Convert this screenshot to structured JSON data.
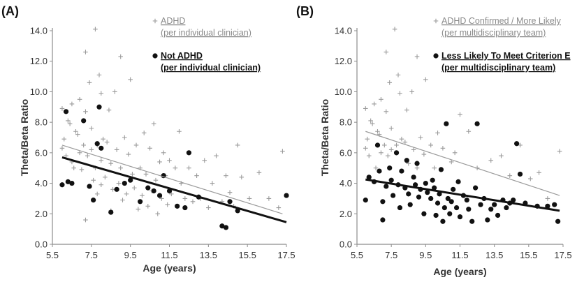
{
  "colors": {
    "gray": "#9a9a9a",
    "black": "#111111",
    "axis": "#8c8c8c"
  },
  "chart_data": [
    {
      "type": "scatter",
      "panel_label": "(A)",
      "xlabel": "Age  (years)",
      "ylabel": "Theta/Beta Ratio",
      "xlim": [
        5.5,
        17.5
      ],
      "ylim": [
        0.0,
        14.0
      ],
      "xticks": [
        "5.5",
        "7.5",
        "9.5",
        "11.5",
        "13.5",
        "15.5",
        "17.5"
      ],
      "yticks": [
        "0.0",
        "2.0",
        "4.0",
        "6.0",
        "8.0",
        "10.0",
        "12.0",
        "14.0"
      ],
      "legend_position": "top-right",
      "series": [
        {
          "name": "ADHD",
          "name_line2": "(per individual clinician)",
          "marker": "plus",
          "points": [
            [
              6.0,
              6.3
            ],
            [
              6.0,
              8.9
            ],
            [
              6.1,
              6.9
            ],
            [
              6.2,
              5.8
            ],
            [
              6.3,
              8.1
            ],
            [
              6.4,
              7.9
            ],
            [
              6.5,
              9.2
            ],
            [
              6.5,
              5.4
            ],
            [
              6.6,
              5.0
            ],
            [
              6.7,
              7.4
            ],
            [
              6.8,
              7.2
            ],
            [
              6.9,
              6.0
            ],
            [
              6.9,
              9.5
            ],
            [
              7.0,
              4.9
            ],
            [
              7.1,
              6.5
            ],
            [
              7.2,
              8.7
            ],
            [
              7.2,
              12.6
            ],
            [
              7.2,
              1.6
            ],
            [
              7.3,
              5.8
            ],
            [
              7.4,
              10.6
            ],
            [
              7.5,
              6.2
            ],
            [
              7.5,
              7.6
            ],
            [
              7.6,
              4.2
            ],
            [
              7.7,
              14.1
            ],
            [
              7.7,
              5.0
            ],
            [
              7.8,
              3.3
            ],
            [
              7.8,
              6.5
            ],
            [
              7.9,
              11.1
            ],
            [
              8.0,
              3.9
            ],
            [
              8.0,
              9.9
            ],
            [
              8.0,
              5.5
            ],
            [
              8.1,
              6.9
            ],
            [
              8.2,
              4.4
            ],
            [
              8.3,
              6.7
            ],
            [
              8.4,
              8.8
            ],
            [
              8.5,
              5.3
            ],
            [
              8.5,
              2.2
            ],
            [
              8.6,
              3.6
            ],
            [
              8.7,
              10.0
            ],
            [
              8.8,
              6.2
            ],
            [
              8.9,
              4.0
            ],
            [
              9.0,
              12.3
            ],
            [
              9.0,
              5.0
            ],
            [
              9.1,
              2.9
            ],
            [
              9.2,
              7.0
            ],
            [
              9.3,
              3.3
            ],
            [
              9.4,
              5.9
            ],
            [
              9.5,
              10.8
            ],
            [
              9.6,
              4.6
            ],
            [
              9.7,
              3.7
            ],
            [
              9.8,
              6.5
            ],
            [
              9.9,
              2.3
            ],
            [
              10.0,
              5.0
            ],
            [
              10.1,
              3.2
            ],
            [
              10.2,
              7.3
            ],
            [
              10.3,
              4.6
            ],
            [
              10.4,
              2.5
            ],
            [
              10.5,
              6.3
            ],
            [
              10.6,
              3.5
            ],
            [
              10.7,
              7.9
            ],
            [
              10.8,
              4.2
            ],
            [
              10.9,
              2.0
            ],
            [
              11.0,
              5.4
            ],
            [
              11.1,
              3.0
            ],
            [
              11.2,
              6.0
            ],
            [
              11.3,
              4.5
            ],
            [
              11.4,
              2.6
            ],
            [
              11.5,
              5.5
            ],
            [
              11.6,
              3.3
            ],
            [
              11.8,
              5.0
            ],
            [
              12.0,
              7.4
            ],
            [
              12.1,
              4.0
            ],
            [
              12.3,
              3.0
            ],
            [
              12.5,
              5.0
            ],
            [
              12.7,
              2.8
            ],
            [
              12.9,
              4.5
            ],
            [
              13.1,
              3.0
            ],
            [
              13.3,
              5.5
            ],
            [
              13.5,
              2.4
            ],
            [
              13.7,
              4.0
            ],
            [
              13.9,
              5.8
            ],
            [
              14.2,
              2.8
            ],
            [
              14.4,
              4.5
            ],
            [
              14.6,
              3.4
            ],
            [
              14.8,
              2.5
            ],
            [
              15.0,
              6.5
            ],
            [
              15.2,
              4.4
            ],
            [
              15.6,
              3.0
            ],
            [
              16.1,
              4.7
            ],
            [
              16.6,
              3.0
            ],
            [
              17.1,
              2.4
            ],
            [
              17.3,
              6.1
            ]
          ]
        },
        {
          "name": "Not ADHD",
          "name_line2": "(per individual clinician)",
          "marker": "circle",
          "points": [
            [
              6.0,
              3.9
            ],
            [
              6.2,
              8.7
            ],
            [
              6.3,
              4.1
            ],
            [
              6.5,
              4.0
            ],
            [
              7.1,
              8.1
            ],
            [
              7.4,
              3.8
            ],
            [
              7.6,
              2.9
            ],
            [
              7.8,
              6.6
            ],
            [
              7.9,
              9.0
            ],
            [
              8.0,
              6.3
            ],
            [
              8.5,
              2.1
            ],
            [
              8.8,
              3.6
            ],
            [
              9.2,
              4.0
            ],
            [
              9.5,
              4.2
            ],
            [
              10.0,
              2.8
            ],
            [
              10.4,
              3.7
            ],
            [
              10.7,
              3.5
            ],
            [
              11.0,
              3.2
            ],
            [
              11.2,
              4.5
            ],
            [
              11.5,
              3.5
            ],
            [
              11.9,
              2.5
            ],
            [
              12.3,
              2.4
            ],
            [
              12.5,
              6.0
            ],
            [
              13.0,
              3.1
            ],
            [
              14.2,
              1.2
            ],
            [
              14.4,
              1.1
            ],
            [
              14.6,
              2.8
            ],
            [
              15.0,
              2.2
            ],
            [
              17.5,
              3.2
            ]
          ]
        }
      ],
      "trend_lines": [
        {
          "series": "ADHD",
          "x": [
            6.0,
            17.3
          ],
          "y": [
            6.5,
            2.0
          ]
        },
        {
          "series": "Not ADHD",
          "x": [
            6.0,
            17.5
          ],
          "y": [
            5.7,
            1.45
          ]
        }
      ]
    },
    {
      "type": "scatter",
      "panel_label": "(B)",
      "xlabel": "Age  (years)",
      "ylabel": "Theta/Beta Ratio",
      "xlim": [
        5.5,
        17.5
      ],
      "ylim": [
        0.0,
        14.0
      ],
      "xticks": [
        "5.5",
        "7.5",
        "9.5",
        "11.5",
        "13.5",
        "15.5",
        "17.5"
      ],
      "yticks": [
        "0.0",
        "2.0",
        "4.0",
        "6.0",
        "8.0",
        "10.0",
        "12.0",
        "14.0"
      ],
      "legend_position": "top-right",
      "series": [
        {
          "name": "ADHD Confirmed / More Likely",
          "name_line2": "(per multidisciplinary team)",
          "marker": "plus",
          "points": [
            [
              6.0,
              6.3
            ],
            [
              6.0,
              8.9
            ],
            [
              6.1,
              6.9
            ],
            [
              6.2,
              5.8
            ],
            [
              6.3,
              8.1
            ],
            [
              6.4,
              7.9
            ],
            [
              6.5,
              9.2
            ],
            [
              6.6,
              5.0
            ],
            [
              6.7,
              7.4
            ],
            [
              6.8,
              7.2
            ],
            [
              6.9,
              6.0
            ],
            [
              6.9,
              9.5
            ],
            [
              7.1,
              6.5
            ],
            [
              7.2,
              8.7
            ],
            [
              7.2,
              12.6
            ],
            [
              7.3,
              5.8
            ],
            [
              7.4,
              10.6
            ],
            [
              7.5,
              6.2
            ],
            [
              7.5,
              7.6
            ],
            [
              7.7,
              14.1
            ],
            [
              7.8,
              6.5
            ],
            [
              7.9,
              11.1
            ],
            [
              8.0,
              9.9
            ],
            [
              8.1,
              6.9
            ],
            [
              8.3,
              6.7
            ],
            [
              8.4,
              8.8
            ],
            [
              8.5,
              5.3
            ],
            [
              8.7,
              10.0
            ],
            [
              8.8,
              6.2
            ],
            [
              9.0,
              12.3
            ],
            [
              9.0,
              5.0
            ],
            [
              9.2,
              7.0
            ],
            [
              9.4,
              5.9
            ],
            [
              9.5,
              10.8
            ],
            [
              9.8,
              6.5
            ],
            [
              10.0,
              5.0
            ],
            [
              10.2,
              7.3
            ],
            [
              10.5,
              6.3
            ],
            [
              10.7,
              7.9
            ],
            [
              11.0,
              5.4
            ],
            [
              11.2,
              6.0
            ],
            [
              11.5,
              8.5
            ],
            [
              12.0,
              7.4
            ],
            [
              12.5,
              5.0
            ],
            [
              13.3,
              5.5
            ],
            [
              13.9,
              5.8
            ],
            [
              14.4,
              4.5
            ],
            [
              15.0,
              6.5
            ],
            [
              15.6,
              4.3
            ],
            [
              16.1,
              4.7
            ],
            [
              16.6,
              3.0
            ],
            [
              17.3,
              6.1
            ]
          ]
        },
        {
          "name": "Less Likely To Meet Criterion E",
          "name_line2": "(per multidisciplinary team)",
          "marker": "circle",
          "points": [
            [
              6.0,
              2.9
            ],
            [
              6.2,
              4.4
            ],
            [
              6.5,
              4.1
            ],
            [
              6.7,
              6.5
            ],
            [
              6.8,
              4.8
            ],
            [
              7.0,
              1.6
            ],
            [
              7.0,
              2.8
            ],
            [
              7.2,
              3.8
            ],
            [
              7.4,
              5.0
            ],
            [
              7.5,
              4.2
            ],
            [
              7.6,
              3.2
            ],
            [
              7.8,
              6.0
            ],
            [
              7.9,
              3.9
            ],
            [
              8.0,
              2.4
            ],
            [
              8.1,
              4.8
            ],
            [
              8.3,
              3.7
            ],
            [
              8.4,
              5.5
            ],
            [
              8.5,
              3.3
            ],
            [
              8.6,
              2.6
            ],
            [
              8.8,
              4.4
            ],
            [
              8.9,
              3.9
            ],
            [
              9.0,
              5.3
            ],
            [
              9.1,
              3.1
            ],
            [
              9.2,
              3.6
            ],
            [
              9.4,
              2.0
            ],
            [
              9.5,
              4.0
            ],
            [
              9.6,
              3.4
            ],
            [
              9.8,
              3.0
            ],
            [
              9.9,
              4.2
            ],
            [
              10.0,
              3.7
            ],
            [
              10.1,
              1.9
            ],
            [
              10.2,
              2.7
            ],
            [
              10.3,
              3.3
            ],
            [
              10.4,
              4.9
            ],
            [
              10.5,
              1.5
            ],
            [
              10.6,
              2.4
            ],
            [
              10.7,
              7.9
            ],
            [
              10.8,
              3.0
            ],
            [
              10.9,
              2.0
            ],
            [
              11.0,
              2.8
            ],
            [
              11.1,
              3.6
            ],
            [
              11.3,
              2.4
            ],
            [
              11.4,
              4.1
            ],
            [
              11.5,
              1.8
            ],
            [
              11.7,
              3.2
            ],
            [
              11.9,
              2.9
            ],
            [
              12.0,
              2.3
            ],
            [
              12.2,
              1.5
            ],
            [
              12.4,
              3.7
            ],
            [
              12.5,
              7.9
            ],
            [
              12.7,
              2.6
            ],
            [
              12.9,
              3.0
            ],
            [
              13.1,
              1.6
            ],
            [
              13.3,
              2.3
            ],
            [
              13.5,
              2.6
            ],
            [
              13.7,
              1.9
            ],
            [
              14.0,
              2.9
            ],
            [
              14.2,
              2.4
            ],
            [
              14.4,
              2.7
            ],
            [
              14.6,
              2.9
            ],
            [
              14.8,
              6.6
            ],
            [
              15.0,
              4.6
            ],
            [
              15.3,
              2.7
            ],
            [
              16.0,
              2.5
            ],
            [
              16.6,
              2.5
            ],
            [
              17.0,
              2.6
            ],
            [
              17.2,
              1.5
            ]
          ]
        }
      ],
      "trend_lines": [
        {
          "series": "ADHD Confirmed / More Likely",
          "x": [
            6.0,
            17.3
          ],
          "y": [
            7.4,
            3.2
          ]
        },
        {
          "series": "Less Likely To Meet Criterion E",
          "x": [
            6.0,
            17.3
          ],
          "y": [
            4.25,
            2.2
          ]
        }
      ]
    }
  ]
}
